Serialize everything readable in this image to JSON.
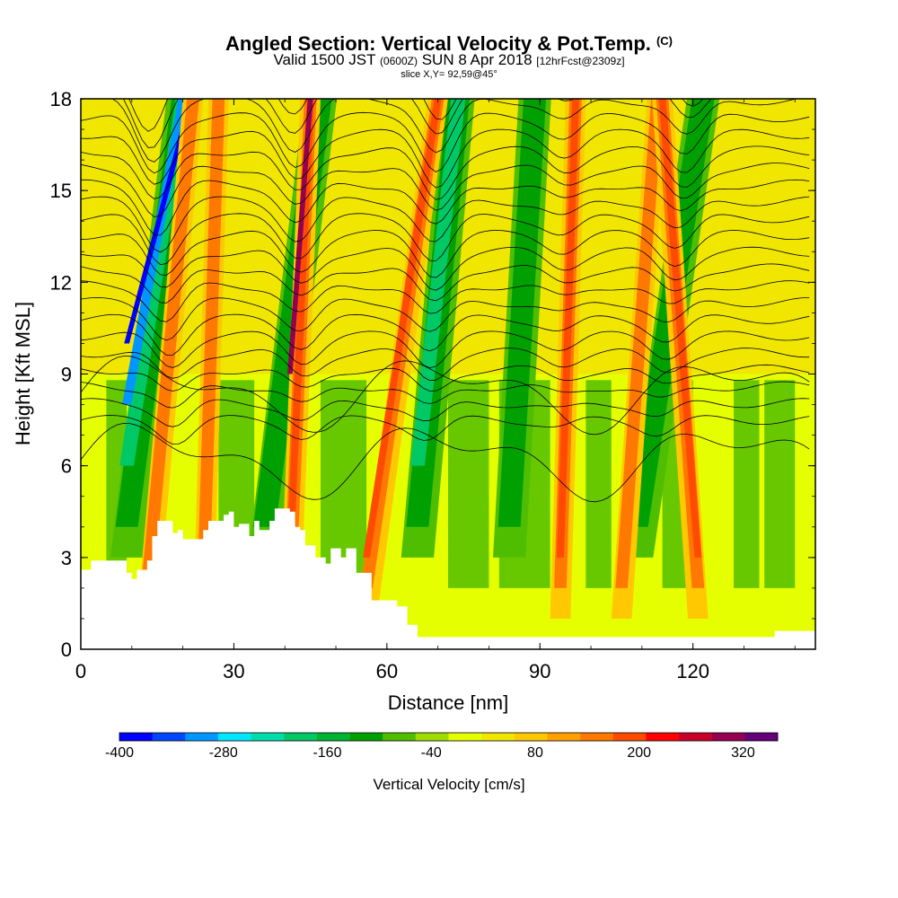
{
  "title": "Angled Section: Vertical Velocity & Pot.Temp.",
  "title_unit": "(C)",
  "valid_time": "Valid 1500 JST",
  "valid_utc": "(0600Z)",
  "valid_date": "SUN 8 Apr 2018",
  "forecast": "[12hrFcst@2309z]",
  "slice": "slice X,Y= 92,59@45°",
  "chart_data": {
    "type": "heatmap",
    "xlabel": "Distance [nm]",
    "ylabel": "Height [Kft MSL]",
    "xlim": [
      0,
      144
    ],
    "ylim": [
      0,
      18
    ],
    "x_ticks": [
      0,
      30,
      60,
      90,
      120
    ],
    "y_ticks": [
      0,
      3,
      6,
      9,
      12,
      15,
      18
    ],
    "colorbar": {
      "label": "Vertical Velocity [cm/s]",
      "tick_labels": [
        "-400",
        "-280",
        "-160",
        "-40",
        "80",
        "200",
        "320"
      ],
      "tick_values": [
        -400,
        -280,
        -160,
        -40,
        80,
        200,
        320
      ],
      "range": [
        -400,
        360
      ],
      "step": 40,
      "colors": [
        "#0000ff",
        "#0046ff",
        "#0096ff",
        "#00e6ff",
        "#00dcaa",
        "#00c864",
        "#00b432",
        "#00a000",
        "#50be00",
        "#a0dc00",
        "#e6ff00",
        "#f0e600",
        "#ffc800",
        "#ffa000",
        "#ff7800",
        "#ff4b00",
        "#ff0000",
        "#c80028",
        "#960050",
        "#640078"
      ]
    },
    "terrain": [
      [
        0,
        2.6
      ],
      [
        2,
        2.9
      ],
      [
        8,
        2.9
      ],
      [
        9,
        2.5
      ],
      [
        10,
        2.3
      ],
      [
        11,
        2.6
      ],
      [
        13,
        2.9
      ],
      [
        14,
        3.7
      ],
      [
        15,
        4.2
      ],
      [
        17,
        4.2
      ],
      [
        18,
        3.8
      ],
      [
        19,
        3.9
      ],
      [
        20,
        3.6
      ],
      [
        23,
        3.6
      ],
      [
        24,
        3.9
      ],
      [
        25,
        4.2
      ],
      [
        28,
        4.4
      ],
      [
        29,
        4.5
      ],
      [
        30,
        4.0
      ],
      [
        31,
        4.1
      ],
      [
        33,
        3.7
      ],
      [
        34,
        4.2
      ],
      [
        35,
        3.9
      ],
      [
        37,
        4.2
      ],
      [
        38,
        4.6
      ],
      [
        41,
        4.5
      ],
      [
        42,
        4.0
      ],
      [
        43,
        3.9
      ],
      [
        44,
        3.4
      ],
      [
        46,
        3.0
      ],
      [
        48,
        2.8
      ],
      [
        49,
        3.3
      ],
      [
        51,
        3.0
      ],
      [
        52,
        3.3
      ],
      [
        54,
        2.5
      ],
      [
        57,
        1.6
      ],
      [
        62,
        1.4
      ],
      [
        64,
        0.8
      ],
      [
        66,
        0.4
      ],
      [
        130,
        0.4
      ],
      [
        136,
        0.6
      ],
      [
        144,
        1.3
      ]
    ],
    "updrafts": [
      {
        "x_base": 13,
        "x_top": 22,
        "value": 80
      },
      {
        "x_base": 24,
        "x_top": 27,
        "value": 160
      },
      {
        "x_base": 41,
        "x_top": 45,
        "value": 320
      },
      {
        "x_base": 56,
        "x_top": 70,
        "value": 200
      },
      {
        "x_base": 94,
        "x_top": 97,
        "value": 200
      },
      {
        "x_base": 106,
        "x_top": 113,
        "value": 160
      },
      {
        "x_base": 121,
        "x_top": 114,
        "value": 200
      }
    ],
    "downdrafts": [
      {
        "x_base": 9,
        "x_top": 20,
        "value": -400
      },
      {
        "x_base": 36,
        "x_top": 47,
        "value": -120
      },
      {
        "x_base": 66,
        "x_top": 74,
        "value": -160
      },
      {
        "x_base": 84,
        "x_top": 89,
        "value": -120
      },
      {
        "x_base": 109,
        "x_top": 122,
        "value": -120
      }
    ]
  }
}
